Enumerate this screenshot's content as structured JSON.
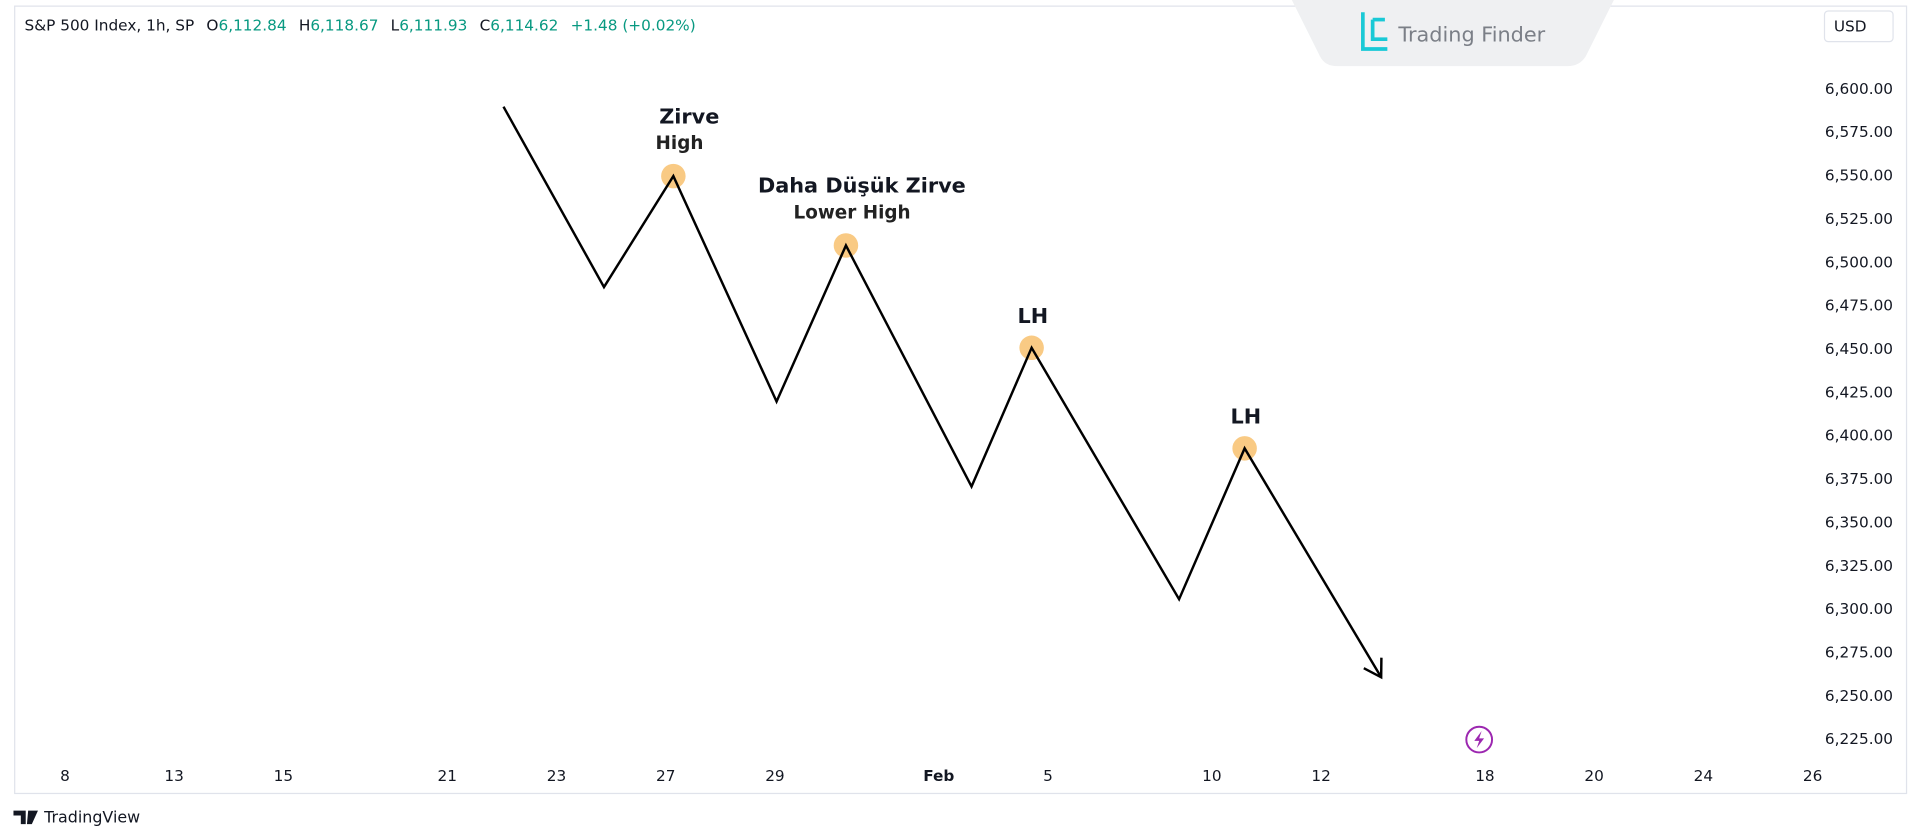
{
  "header": {
    "symbol": "S&P 500 Index, 1h, SP",
    "open_label": "O",
    "open": "6,112.84",
    "high_label": "H",
    "high": "6,118.67",
    "low_label": "L",
    "low": "6,111.93",
    "close_label": "C",
    "close": "6,114.62",
    "change": "+1.48 (+0.02%)",
    "currency": "USD",
    "logo": "Trading Finder",
    "footer": "TradingView"
  },
  "chart_data": {
    "type": "line",
    "color": "#000000",
    "x": [
      8.03,
      9.87,
      11.14,
      13.03,
      14.3,
      16.6,
      17.7,
      20.4,
      21.6,
      24.1
    ],
    "values": [
      6590,
      6486,
      6550,
      6420,
      6510,
      6371,
      6451,
      6306,
      6393,
      6261
    ],
    "highlight_color": "#f8c16e",
    "annotations": [
      {
        "text": "Zirve",
        "subtext": "High"
      },
      {
        "text": "Daha Düşük Zirve",
        "subtext": "Lower High"
      },
      {
        "text": "LH"
      },
      {
        "text": "LH"
      }
    ],
    "xlim": [
      -0.92,
      32.15
    ],
    "xticks": [
      {
        "value": 0,
        "label": "8"
      },
      {
        "value": 2,
        "label": "13"
      },
      {
        "value": 4,
        "label": "15"
      },
      {
        "value": 7,
        "label": "21"
      },
      {
        "value": 9,
        "label": "23"
      },
      {
        "value": 11,
        "label": "27"
      },
      {
        "value": 13,
        "label": "29"
      },
      {
        "value": 16,
        "label": "Feb"
      },
      {
        "value": 18,
        "label": "5"
      },
      {
        "value": 21,
        "label": "10"
      },
      {
        "value": 23,
        "label": "12"
      },
      {
        "value": 26,
        "label": "18"
      },
      {
        "value": 28,
        "label": "20"
      },
      {
        "value": 30,
        "label": "24"
      },
      {
        "value": 32,
        "label": "26"
      }
    ],
    "ylim": [
      6194,
      6648
    ],
    "yticks": [
      {
        "value": 6225,
        "label": "6,225.00"
      },
      {
        "value": 6250,
        "label": "6,250.00"
      },
      {
        "value": 6275,
        "label": "6,275.00"
      },
      {
        "value": 6300,
        "label": "6,300.00"
      },
      {
        "value": 6325,
        "label": "6,325.00"
      },
      {
        "value": 6350,
        "label": "6,350.00"
      },
      {
        "value": 6375,
        "label": "6,375.00"
      },
      {
        "value": 6400,
        "label": "6,400.00"
      },
      {
        "value": 6425,
        "label": "6,425.00"
      },
      {
        "value": 6450,
        "label": "6,450.00"
      },
      {
        "value": 6475,
        "label": "6,475.00"
      },
      {
        "value": 6500,
        "label": "6,500.00"
      },
      {
        "value": 6525,
        "label": "6,525.00"
      },
      {
        "value": 6550,
        "label": "6,550.00"
      },
      {
        "value": 6575,
        "label": "6,575.00"
      },
      {
        "value": 6600,
        "label": "6,600.00"
      }
    ],
    "grid": false
  }
}
